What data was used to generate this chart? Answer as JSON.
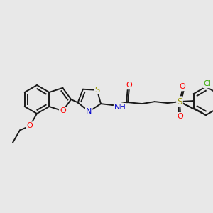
{
  "background_color": "#e8e8e8",
  "bond_color": "#1a1a1a",
  "lw": 1.4,
  "atom_colors": {
    "O": "#ff0000",
    "N": "#0000cc",
    "S": "#999900",
    "Cl": "#33aa00",
    "C": "#1a1a1a"
  },
  "font_size": 7.5
}
